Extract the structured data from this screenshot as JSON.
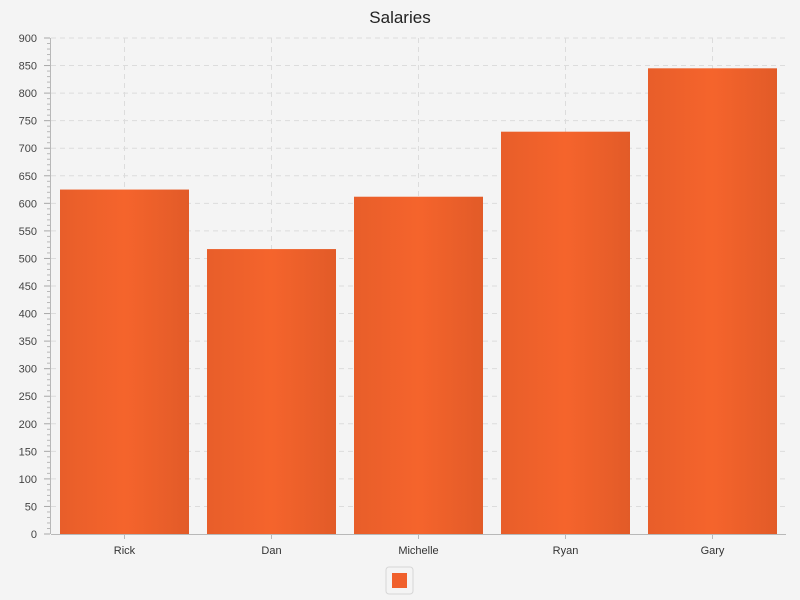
{
  "chart_data": {
    "type": "bar",
    "title": "Salaries",
    "categories": [
      "Rick",
      "Dan",
      "Michelle",
      "Ryan",
      "Gary"
    ],
    "series": [
      {
        "values": [
          625,
          517,
          612,
          730,
          845
        ],
        "color": "#f0602c"
      }
    ],
    "ylim": [
      0,
      900
    ],
    "y_ticks": [
      0,
      50,
      100,
      150,
      200,
      250,
      300,
      350,
      400,
      450,
      500,
      550,
      600,
      650,
      700,
      750,
      800,
      850,
      900
    ],
    "grid": true,
    "legend": "bottom-center"
  }
}
